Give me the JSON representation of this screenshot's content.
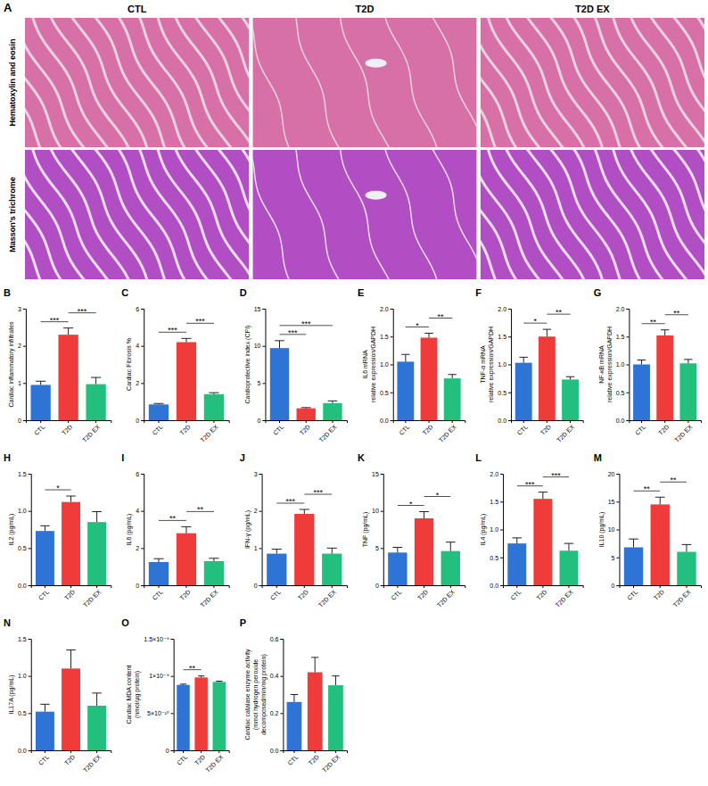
{
  "figure": {
    "panel": "A",
    "columns": [
      "CTL",
      "T2D",
      "T2D EX"
    ],
    "rows": [
      "Hematoxylin and eosin",
      "Masson's trichrome"
    ]
  },
  "chart_data": [
    {
      "type": "bar",
      "panel": "B",
      "ylabel": [
        "Cardiac inflammatory infiltrates"
      ],
      "categories": [
        "CTL",
        "T2D",
        "T2D EX"
      ],
      "colors": [
        "#2e74d6",
        "#f03b3b",
        "#22bf7e"
      ],
      "values": [
        0.95,
        2.3,
        0.97
      ],
      "errors": [
        0.1,
        0.18,
        0.18
      ],
      "ylim": [
        0,
        3
      ],
      "yticks": [
        0,
        1,
        2,
        3
      ],
      "significance": [
        {
          "from": "CTL",
          "to": "T2D",
          "label": "***"
        },
        {
          "from": "T2D",
          "to": "T2D EX",
          "label": "***"
        }
      ]
    },
    {
      "type": "bar",
      "panel": "C",
      "ylabel": [
        "Cardiac Fibrosis %"
      ],
      "categories": [
        "CTL",
        "T2D",
        "T2D EX"
      ],
      "colors": [
        "#2e74d6",
        "#f03b3b",
        "#22bf7e"
      ],
      "values": [
        0.85,
        4.2,
        1.4
      ],
      "errors": [
        0.05,
        0.2,
        0.08
      ],
      "ylim": [
        0,
        6
      ],
      "yticks": [
        0,
        2,
        4,
        6
      ],
      "significance": [
        {
          "from": "CTL",
          "to": "T2D",
          "label": "***"
        },
        {
          "from": "T2D",
          "to": "T2D EX",
          "label": "***"
        }
      ]
    },
    {
      "type": "bar",
      "panel": "D",
      "ylabel": [
        "Cardioprotective index (CPI)"
      ],
      "categories": [
        "CTL",
        "T2D",
        "T2D EX"
      ],
      "colors": [
        "#2e74d6",
        "#f03b3b",
        "#22bf7e"
      ],
      "values": [
        9.7,
        1.6,
        2.3
      ],
      "errors": [
        1.0,
        0.1,
        0.3
      ],
      "ylim": [
        0,
        15
      ],
      "yticks": [
        0,
        5,
        10,
        15
      ],
      "significance": [
        {
          "from": "CTL",
          "to": "T2D",
          "label": "***"
        },
        {
          "from": "CTL",
          "to": "T2D EX",
          "label": "***"
        }
      ]
    },
    {
      "type": "bar",
      "panel": "E",
      "ylabel": [
        "IL6 mRNA",
        "relative expression/GAPDH"
      ],
      "categories": [
        "CTL",
        "T2D",
        "T2D EX"
      ],
      "colors": [
        "#2e74d6",
        "#f03b3b",
        "#22bf7e"
      ],
      "values": [
        1.05,
        1.48,
        0.75
      ],
      "errors": [
        0.13,
        0.08,
        0.07
      ],
      "ylim": [
        0,
        2
      ],
      "yticks": [
        {
          "value": 0,
          "label": "0.0"
        },
        0.5,
        {
          "value": 1,
          "label": "1.0"
        },
        1.5,
        {
          "value": 2,
          "label": "2.0"
        }
      ],
      "significance": [
        {
          "from": "CTL",
          "to": "T2D",
          "label": "*"
        },
        {
          "from": "T2D",
          "to": "T2D EX",
          "label": "**"
        }
      ]
    },
    {
      "type": "bar",
      "panel": "F",
      "ylabel": [
        "TNF-α mRNA",
        "relative expression/GAPDH"
      ],
      "categories": [
        "CTL",
        "T2D",
        "T2D EX"
      ],
      "colors": [
        "#2e74d6",
        "#f03b3b",
        "#22bf7e"
      ],
      "values": [
        1.03,
        1.5,
        0.73
      ],
      "errors": [
        0.1,
        0.13,
        0.05
      ],
      "ylim": [
        0,
        2
      ],
      "yticks": [
        {
          "value": 0,
          "label": "0.0"
        },
        0.5,
        {
          "value": 1,
          "label": "1.0"
        },
        1.5,
        {
          "value": 2,
          "label": "2.0"
        }
      ],
      "significance": [
        {
          "from": "CTL",
          "to": "T2D",
          "label": "*"
        },
        {
          "from": "T2D",
          "to": "T2D EX",
          "label": "**"
        }
      ]
    },
    {
      "type": "bar",
      "panel": "G",
      "ylabel": [
        "NF-κB mRNA",
        "relative expression/GAPDH"
      ],
      "categories": [
        "CTL",
        "T2D",
        "T2D EX"
      ],
      "colors": [
        "#2e74d6",
        "#f03b3b",
        "#22bf7e"
      ],
      "values": [
        1.0,
        1.52,
        1.02
      ],
      "errors": [
        0.08,
        0.1,
        0.07
      ],
      "ylim": [
        0,
        2
      ],
      "yticks": [
        {
          "value": 0,
          "label": "0.0"
        },
        0.5,
        {
          "value": 1,
          "label": "1.0"
        },
        1.5,
        {
          "value": 2,
          "label": "2.0"
        }
      ],
      "significance": [
        {
          "from": "CTL",
          "to": "T2D",
          "label": "**"
        },
        {
          "from": "T2D",
          "to": "T2D EX",
          "label": "**"
        }
      ]
    },
    {
      "type": "bar",
      "panel": "H",
      "ylabel": [
        "IL2 (pg/mL)"
      ],
      "categories": [
        "CTL",
        "T2D",
        "T2D EX"
      ],
      "colors": [
        "#2e74d6",
        "#f03b3b",
        "#22bf7e"
      ],
      "values": [
        0.73,
        1.12,
        0.85
      ],
      "errors": [
        0.07,
        0.08,
        0.14
      ],
      "ylim": [
        0,
        1.5
      ],
      "yticks": [
        {
          "value": 0,
          "label": "0.0"
        },
        0.5,
        {
          "value": 1,
          "label": "1.0"
        },
        1.5
      ],
      "significance": [
        {
          "from": "CTL",
          "to": "T2D",
          "label": "*"
        }
      ]
    },
    {
      "type": "bar",
      "panel": "I",
      "ylabel": [
        "IL6 (pg/mL)"
      ],
      "categories": [
        "CTL",
        "T2D",
        "T2D EX"
      ],
      "colors": [
        "#2e74d6",
        "#f03b3b",
        "#22bf7e"
      ],
      "values": [
        1.25,
        2.8,
        1.3
      ],
      "errors": [
        0.18,
        0.35,
        0.15
      ],
      "ylim": [
        0,
        6
      ],
      "yticks": [
        0,
        2,
        4,
        6
      ],
      "significance": [
        {
          "from": "CTL",
          "to": "T2D",
          "label": "**"
        },
        {
          "from": "T2D",
          "to": "T2D EX",
          "label": "**"
        }
      ]
    },
    {
      "type": "bar",
      "panel": "J",
      "ylabel": [
        "IFN-γ (pg/mL)"
      ],
      "categories": [
        "CTL",
        "T2D",
        "T2D EX"
      ],
      "colors": [
        "#2e74d6",
        "#f03b3b",
        "#22bf7e"
      ],
      "values": [
        0.85,
        1.92,
        0.85
      ],
      "errors": [
        0.12,
        0.12,
        0.15
      ],
      "ylim": [
        0,
        3
      ],
      "yticks": [
        0,
        1,
        2,
        3
      ],
      "significance": [
        {
          "from": "CTL",
          "to": "T2D",
          "label": "***"
        },
        {
          "from": "T2D",
          "to": "T2D EX",
          "label": "***"
        }
      ]
    },
    {
      "type": "bar",
      "panel": "K",
      "ylabel": [
        "TNF (pg/mL)"
      ],
      "categories": [
        "CTL",
        "T2D",
        "T2D EX"
      ],
      "colors": [
        "#2e74d6",
        "#f03b3b",
        "#22bf7e"
      ],
      "values": [
        4.4,
        9.0,
        4.6
      ],
      "errors": [
        0.7,
        0.9,
        1.2
      ],
      "ylim": [
        0,
        15
      ],
      "yticks": [
        0,
        5,
        10,
        15
      ],
      "significance": [
        {
          "from": "CTL",
          "to": "T2D",
          "label": "*"
        },
        {
          "from": "T2D",
          "to": "T2D EX",
          "label": "*"
        }
      ]
    },
    {
      "type": "bar",
      "panel": "L",
      "ylabel": [
        "IL4 (pg/mL)"
      ],
      "categories": [
        "CTL",
        "T2D",
        "T2D EX"
      ],
      "colors": [
        "#2e74d6",
        "#f03b3b",
        "#22bf7e"
      ],
      "values": [
        0.75,
        1.55,
        0.62
      ],
      "errors": [
        0.1,
        0.12,
        0.13
      ],
      "ylim": [
        0,
        2
      ],
      "yticks": [
        {
          "value": 0,
          "label": "0.0"
        },
        0.5,
        {
          "value": 1,
          "label": "1.0"
        },
        1.5,
        {
          "value": 2,
          "label": "2.0"
        }
      ],
      "significance": [
        {
          "from": "CTL",
          "to": "T2D",
          "label": "***"
        },
        {
          "from": "T2D",
          "to": "T2D EX",
          "label": "***"
        }
      ]
    },
    {
      "type": "bar",
      "panel": "M",
      "ylabel": [
        "IL10 (pg/mL)"
      ],
      "categories": [
        "CTL",
        "T2D",
        "T2D EX"
      ],
      "colors": [
        "#2e74d6",
        "#f03b3b",
        "#22bf7e"
      ],
      "values": [
        6.8,
        14.5,
        6.0
      ],
      "errors": [
        1.5,
        1.3,
        1.3
      ],
      "ylim": [
        0,
        20
      ],
      "yticks": [
        0,
        5,
        10,
        15,
        20
      ],
      "significance": [
        {
          "from": "CTL",
          "to": "T2D",
          "label": "**"
        },
        {
          "from": "T2D",
          "to": "T2D EX",
          "label": "**"
        }
      ]
    },
    {
      "type": "bar",
      "panel": "N",
      "ylabel": [
        "IL17A (pg/mL)"
      ],
      "categories": [
        "CTL",
        "T2D",
        "T2D EX"
      ],
      "colors": [
        "#2e74d6",
        "#f03b3b",
        "#22bf7e"
      ],
      "values": [
        0.52,
        1.1,
        0.6
      ],
      "errors": [
        0.1,
        0.25,
        0.17
      ],
      "ylim": [
        0,
        1.5
      ],
      "yticks": [
        {
          "value": 0,
          "label": "0.0"
        },
        0.5,
        {
          "value": 1,
          "label": "1.0"
        },
        1.5
      ],
      "significance": []
    },
    {
      "type": "bar",
      "panel": "O",
      "ylabel": [
        "Cardiac MDA content",
        "(nmol/µg protein)"
      ],
      "categories": [
        "CTL",
        "T2D",
        "T2D EX"
      ],
      "colors": [
        "#2e74d6",
        "#f03b3b",
        "#22bf7e"
      ],
      "values": [
        8.8e-10,
        9.8e-10,
        9.2e-10
      ],
      "errors": [
        1e-11,
        2e-11,
        1e-11
      ],
      "ylim": [
        0,
        1.5e-09
      ],
      "yticks": [
        0,
        {
          "value": 5e-10,
          "label": "5×10⁻¹⁰"
        },
        {
          "value": 1e-09,
          "label": "1×10⁻⁹"
        },
        {
          "value": 1.5e-09,
          "label": "1.5×10⁻⁹"
        }
      ],
      "significance": [
        {
          "from": "CTL",
          "to": "T2D",
          "label": "**"
        }
      ]
    },
    {
      "type": "bar",
      "panel": "P",
      "ylabel": [
        "Cardiac catalase enzyme activity",
        "(mmol hydrogen peroxide",
        "decomposed/min/mg protein)"
      ],
      "categories": [
        "CTL",
        "T2D",
        "T2D EX"
      ],
      "colors": [
        "#2e74d6",
        "#f03b3b",
        "#22bf7e"
      ],
      "values": [
        0.26,
        0.42,
        0.35
      ],
      "errors": [
        0.04,
        0.08,
        0.05
      ],
      "ylim": [
        0,
        0.6
      ],
      "yticks": [
        {
          "value": 0,
          "label": "0.0"
        },
        0.2,
        0.4,
        0.6
      ],
      "significance": []
    }
  ]
}
